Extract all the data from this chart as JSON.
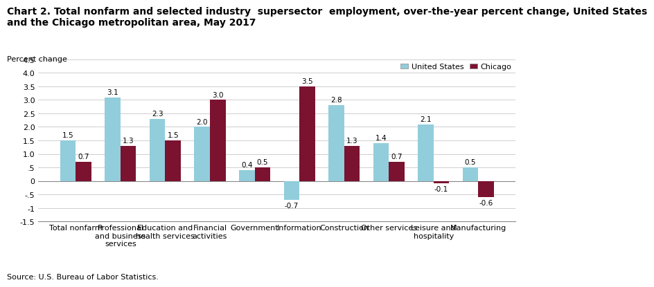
{
  "title": "Chart 2. Total nonfarm and selected industry  supersector  employment, over-the-year percent change, United States\nand the Chicago metropolitan area, May 2017",
  "ylabel": "Percent change",
  "source": "Source: U.S. Bureau of Labor Statistics.",
  "categories": [
    "Total nonfarm",
    "Professional\nand business\nservices",
    "Education and\nhealth services",
    "Financial\nactivities",
    "Government",
    "Information",
    "Construction",
    "Other services",
    "Leisure and\nhospitality",
    "Manufacturing"
  ],
  "us_values": [
    1.5,
    3.1,
    2.3,
    2.0,
    0.4,
    -0.7,
    2.8,
    1.4,
    2.1,
    0.5
  ],
  "chicago_values": [
    0.7,
    1.3,
    1.5,
    3.0,
    0.5,
    3.5,
    1.3,
    0.7,
    -0.1,
    -0.6
  ],
  "us_color": "#92CDDC",
  "chicago_color": "#7B1230",
  "ylim": [
    -1.5,
    4.5
  ],
  "yticks": [
    -1.5,
    -1.0,
    -0.5,
    0.0,
    0.5,
    1.0,
    1.5,
    2.0,
    2.5,
    3.0,
    3.5,
    4.0,
    4.5
  ],
  "ytick_labels": [
    "-1.5",
    "-1",
    "-0.5",
    "0",
    ".5",
    "1.0",
    "1.5",
    "2.0",
    "2.5",
    "3.0",
    "3.5",
    "4.0",
    "4.5"
  ],
  "bar_width": 0.35,
  "legend_us": "United States",
  "legend_chicago": "Chicago",
  "title_fontsize": 10,
  "ylabel_fontsize": 8,
  "label_fontsize": 7.5,
  "tick_fontsize": 8,
  "source_fontsize": 8
}
